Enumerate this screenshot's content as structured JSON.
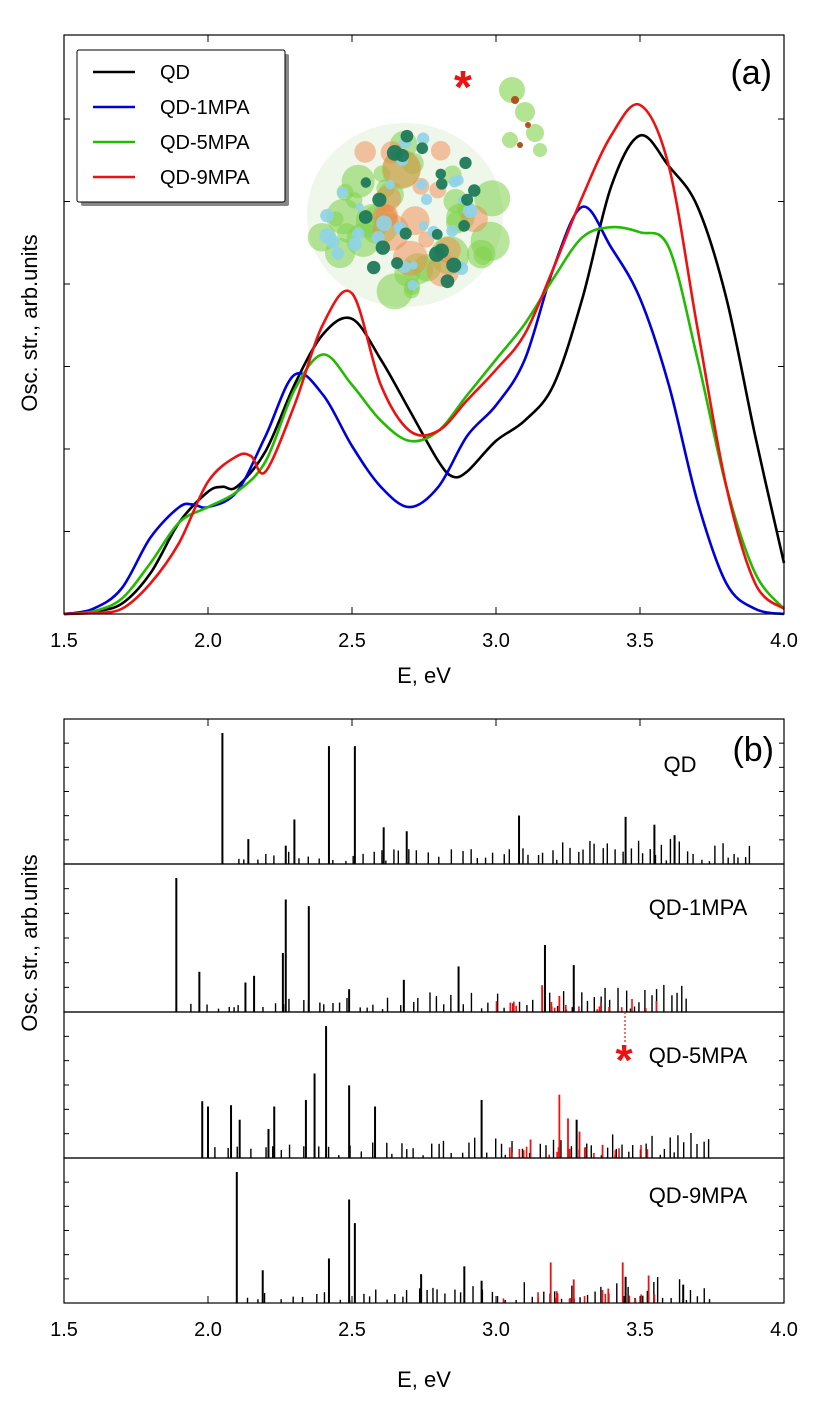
{
  "chart_data": [
    {
      "panel_label": "(a)",
      "type": "line",
      "xlabel": "E, eV",
      "ylabel": "Osc. str., arb.units",
      "xlim": [
        1.5,
        4.0
      ],
      "ylim": [
        0,
        1.0
      ],
      "xticks": [
        "1.5",
        "2.0",
        "2.5",
        "3.0",
        "3.5",
        "4.0"
      ],
      "legend_position": "top-left",
      "inset": "molecular orbital isosurface of quantum dot with attached ligand",
      "marker_symbol": "*",
      "series": [
        {
          "name": "QD",
          "color": "#000000",
          "x": [
            1.5,
            1.6,
            1.7,
            1.8,
            1.9,
            2.0,
            2.05,
            2.1,
            2.2,
            2.3,
            2.4,
            2.5,
            2.6,
            2.7,
            2.8,
            2.85,
            2.9,
            3.0,
            3.1,
            3.2,
            3.3,
            3.4,
            3.5,
            3.6,
            3.7,
            3.8,
            3.9,
            4.0
          ],
          "y": [
            0.0,
            0.005,
            0.02,
            0.08,
            0.18,
            0.24,
            0.25,
            0.25,
            0.32,
            0.45,
            0.55,
            0.58,
            0.5,
            0.4,
            0.3,
            0.27,
            0.28,
            0.34,
            0.38,
            0.45,
            0.62,
            0.84,
            0.94,
            0.88,
            0.8,
            0.62,
            0.35,
            0.1
          ]
        },
        {
          "name": "QD-1MPA",
          "color": "#0000dd",
          "x": [
            1.5,
            1.6,
            1.7,
            1.8,
            1.9,
            1.95,
            2.0,
            2.1,
            2.2,
            2.3,
            2.4,
            2.5,
            2.6,
            2.7,
            2.8,
            2.9,
            3.0,
            3.1,
            3.2,
            3.3,
            3.4,
            3.5,
            3.6,
            3.7,
            3.8,
            3.9,
            4.0
          ],
          "y": [
            0.0,
            0.01,
            0.05,
            0.15,
            0.21,
            0.215,
            0.21,
            0.24,
            0.35,
            0.47,
            0.43,
            0.33,
            0.25,
            0.21,
            0.25,
            0.35,
            0.41,
            0.5,
            0.68,
            0.8,
            0.72,
            0.62,
            0.45,
            0.22,
            0.06,
            0.01,
            0.0
          ]
        },
        {
          "name": "QD-5MPA",
          "color": "#22bb00",
          "x": [
            1.5,
            1.6,
            1.7,
            1.8,
            1.9,
            2.0,
            2.1,
            2.2,
            2.3,
            2.4,
            2.5,
            2.6,
            2.7,
            2.8,
            2.9,
            3.0,
            3.1,
            3.2,
            3.3,
            3.4,
            3.5,
            3.6,
            3.7,
            3.8,
            3.9,
            4.0
          ],
          "y": [
            0.0,
            0.005,
            0.03,
            0.1,
            0.18,
            0.21,
            0.24,
            0.3,
            0.44,
            0.51,
            0.45,
            0.38,
            0.34,
            0.36,
            0.43,
            0.5,
            0.57,
            0.66,
            0.74,
            0.76,
            0.75,
            0.72,
            0.5,
            0.25,
            0.08,
            0.01
          ]
        },
        {
          "name": "QD-9MPA",
          "color": "#ee1111",
          "x": [
            1.5,
            1.6,
            1.7,
            1.8,
            1.9,
            2.0,
            2.1,
            2.15,
            2.2,
            2.3,
            2.4,
            2.5,
            2.6,
            2.7,
            2.8,
            2.9,
            3.0,
            3.1,
            3.2,
            3.3,
            3.4,
            3.5,
            3.6,
            3.7,
            3.8,
            3.9,
            4.0
          ],
          "y": [
            0.0,
            0.002,
            0.01,
            0.06,
            0.14,
            0.26,
            0.31,
            0.31,
            0.28,
            0.41,
            0.57,
            0.63,
            0.45,
            0.36,
            0.36,
            0.42,
            0.48,
            0.55,
            0.68,
            0.82,
            0.94,
            1.0,
            0.88,
            0.56,
            0.25,
            0.06,
            0.01
          ]
        }
      ]
    },
    {
      "panel_label": "(b)",
      "type": "bar",
      "xlabel": "E, eV",
      "ylabel": "Osc. str., arb.units",
      "xlim": [
        1.5,
        4.0
      ],
      "xticks": [
        "1.5",
        "2.0",
        "2.5",
        "3.0",
        "3.5",
        "4.0"
      ],
      "marker_symbol": "*",
      "marker_energy": 3.45,
      "subpanels": [
        {
          "name": "QD",
          "max_energy": 3.9,
          "tall_peaks": [
            [
              2.05,
              1.0
            ],
            [
              2.14,
              0.19
            ],
            [
              2.27,
              0.14
            ],
            [
              2.3,
              0.34
            ],
            [
              2.42,
              0.9
            ],
            [
              2.51,
              0.9
            ],
            [
              2.61,
              0.28
            ],
            [
              2.69,
              0.25
            ],
            [
              3.08,
              0.37
            ],
            [
              3.45,
              0.36
            ],
            [
              3.55,
              0.3
            ],
            [
              3.62,
              0.22
            ]
          ],
          "red_peaks": []
        },
        {
          "name": "QD-1MPA",
          "max_energy": 3.67,
          "tall_peaks": [
            [
              1.89,
              1.0
            ],
            [
              1.97,
              0.3
            ],
            [
              2.13,
              0.22
            ],
            [
              2.16,
              0.27
            ],
            [
              2.26,
              0.44
            ],
            [
              2.27,
              0.84
            ],
            [
              2.35,
              0.79
            ],
            [
              2.49,
              0.17
            ],
            [
              2.68,
              0.24
            ],
            [
              2.87,
              0.34
            ],
            [
              3.17,
              0.5
            ],
            [
              3.27,
              0.35
            ]
          ],
          "red_peaks": [
            [
              3.16,
              0.2
            ],
            [
              3.22,
              0.12
            ],
            [
              3.05,
              0.07
            ]
          ]
        },
        {
          "name": "QD-5MPA",
          "max_energy": 3.76,
          "tall_peaks": [
            [
              1.98,
              0.43
            ],
            [
              2.0,
              0.39
            ],
            [
              2.08,
              0.4
            ],
            [
              2.11,
              0.29
            ],
            [
              2.21,
              0.22
            ],
            [
              2.23,
              0.39
            ],
            [
              2.34,
              0.44
            ],
            [
              2.37,
              0.64
            ],
            [
              2.41,
              1.0
            ],
            [
              2.49,
              0.55
            ],
            [
              2.58,
              0.39
            ],
            [
              2.95,
              0.44
            ],
            [
              3.28,
              0.29
            ]
          ],
          "red_peaks": [
            [
              3.22,
              0.48
            ],
            [
              3.25,
              0.3
            ],
            [
              3.29,
              0.2
            ],
            [
              3.12,
              0.14
            ],
            [
              3.37,
              0.1
            ]
          ]
        },
        {
          "name": "QD-9MPA",
          "max_energy": 3.76,
          "tall_peaks": [
            [
              2.1,
              1.0
            ],
            [
              2.19,
              0.25
            ],
            [
              2.42,
              0.34
            ],
            [
              2.49,
              0.79
            ],
            [
              2.51,
              0.61
            ],
            [
              2.74,
              0.22
            ],
            [
              2.89,
              0.28
            ],
            [
              2.95,
              0.17
            ],
            [
              3.45,
              0.2
            ],
            [
              3.65,
              0.14
            ]
          ],
          "red_peaks": [
            [
              3.19,
              0.31
            ],
            [
              3.44,
              0.31
            ],
            [
              3.53,
              0.21
            ],
            [
              3.27,
              0.18
            ],
            [
              3.39,
              0.11
            ]
          ]
        }
      ]
    }
  ]
}
